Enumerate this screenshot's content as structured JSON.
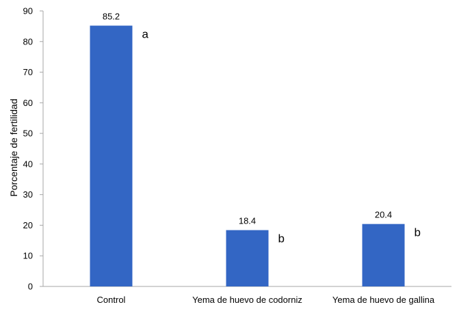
{
  "chart_data": {
    "type": "bar",
    "categories": [
      "Control",
      "Yema de huevo de codorniz",
      "Yema de huevo de gallina"
    ],
    "values": [
      85.2,
      18.4,
      20.4
    ],
    "data_labels": [
      "85.2",
      "18.4",
      "20.4"
    ],
    "significance_letters": [
      "a",
      "b",
      "b"
    ],
    "title": "",
    "xlabel": "",
    "ylabel": "Porcentaje de fertilidad",
    "ylim": [
      0,
      90
    ],
    "yticks": [
      "0",
      "10",
      "20",
      "30",
      "40",
      "50",
      "60",
      "70",
      "80",
      "90"
    ],
    "grid": false,
    "legend": "none",
    "bar_color": "#3366c4"
  }
}
